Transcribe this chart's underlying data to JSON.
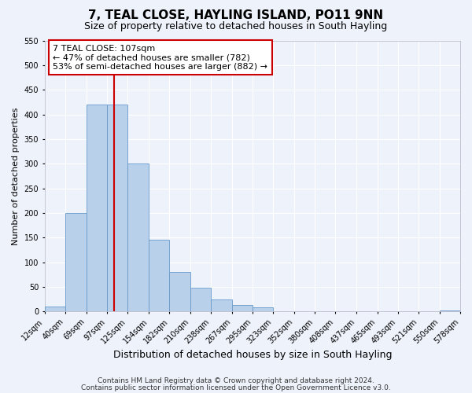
{
  "title": "7, TEAL CLOSE, HAYLING ISLAND, PO11 9NN",
  "subtitle": "Size of property relative to detached houses in South Hayling",
  "xlabel": "Distribution of detached houses by size in South Hayling",
  "ylabel": "Number of detached properties",
  "bar_heights": [
    10,
    200,
    420,
    420,
    300,
    145,
    80,
    48,
    25,
    13,
    8,
    0,
    0,
    0,
    0,
    0,
    0,
    0,
    0,
    3
  ],
  "bin_labels": [
    "12sqm",
    "40sqm",
    "69sqm",
    "97sqm",
    "125sqm",
    "154sqm",
    "182sqm",
    "210sqm",
    "238sqm",
    "267sqm",
    "295sqm",
    "323sqm",
    "352sqm",
    "380sqm",
    "408sqm",
    "437sqm",
    "465sqm",
    "493sqm",
    "521sqm",
    "550sqm",
    "578sqm"
  ],
  "bin_edges": [
    12,
    40,
    69,
    97,
    125,
    154,
    182,
    210,
    238,
    267,
    295,
    323,
    352,
    380,
    408,
    437,
    465,
    493,
    521,
    550,
    578
  ],
  "bar_color": "#b8d0ea",
  "bar_edge_color": "#6699cc",
  "vline_x": 107,
  "vline_color": "#cc0000",
  "ylim": [
    0,
    550
  ],
  "yticks": [
    0,
    50,
    100,
    150,
    200,
    250,
    300,
    350,
    400,
    450,
    500,
    550
  ],
  "annotation_title": "7 TEAL CLOSE: 107sqm",
  "annotation_line1": "← 47% of detached houses are smaller (782)",
  "annotation_line2": "53% of semi-detached houses are larger (882) →",
  "annotation_box_facecolor": "#ffffff",
  "annotation_box_edgecolor": "#cc0000",
  "footnote1": "Contains HM Land Registry data © Crown copyright and database right 2024.",
  "footnote2": "Contains public sector information licensed under the Open Government Licence v3.0.",
  "background_color": "#eef2fb",
  "grid_color": "#ffffff",
  "title_fontsize": 11,
  "subtitle_fontsize": 9,
  "xlabel_fontsize": 9,
  "ylabel_fontsize": 8,
  "tick_fontsize": 7,
  "annotation_fontsize": 8,
  "footnote_fontsize": 6.5
}
